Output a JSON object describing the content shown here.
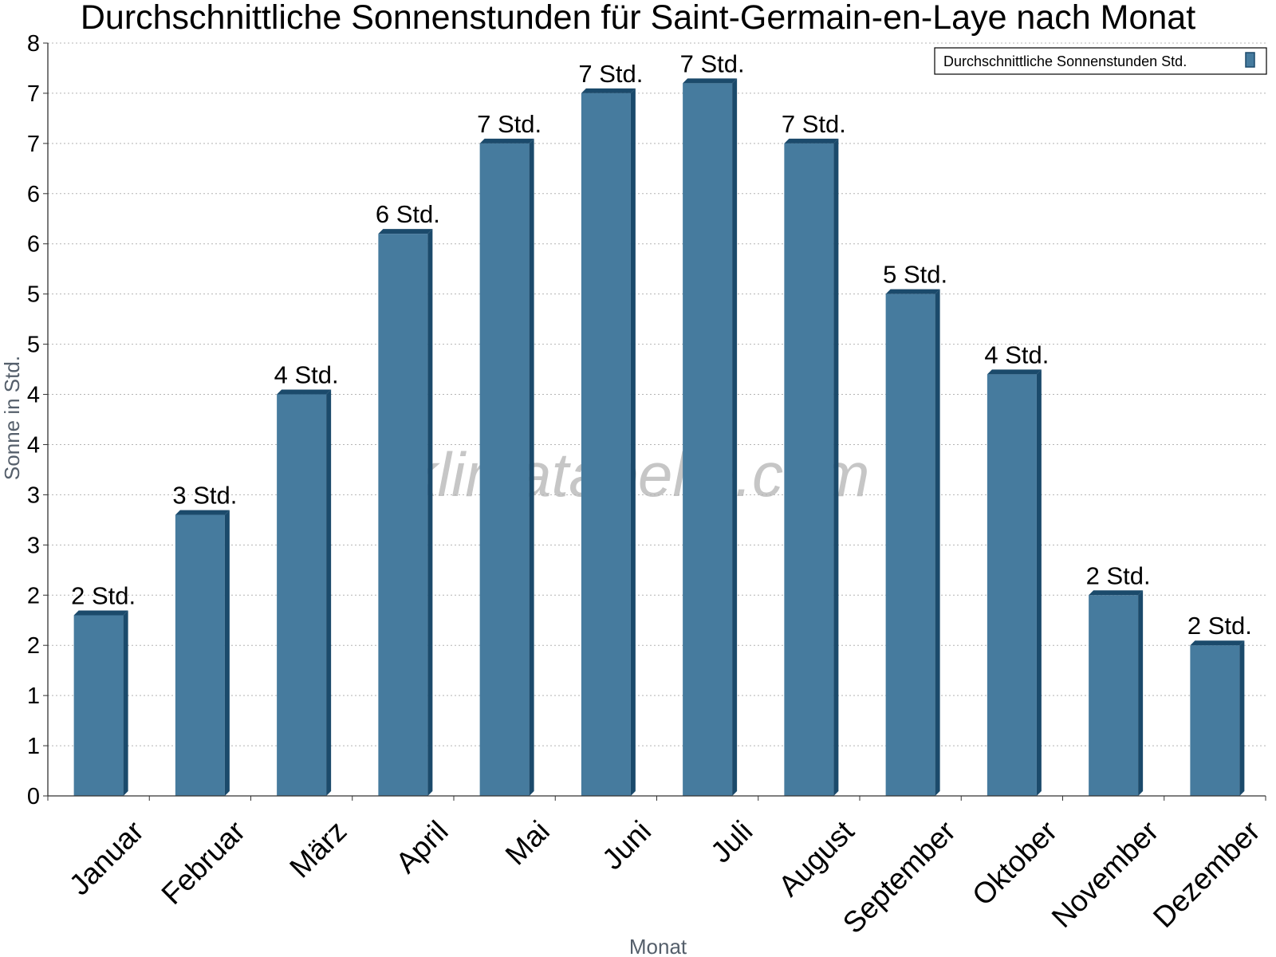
{
  "chart_data": {
    "type": "bar",
    "title": "Durchschnittliche Sonnenstunden für Saint-Germain-en-Laye nach Monat",
    "xlabel": "Monat",
    "ylabel": "Sonne in Std.",
    "categories": [
      "Januar",
      "Februar",
      "März",
      "April",
      "Mai",
      "Juni",
      "Juli",
      "August",
      "September",
      "Oktober",
      "November",
      "Dezember"
    ],
    "series": [
      {
        "name": "Durchschnittliche Sonnenstunden Std.",
        "values": [
          1.8,
          2.8,
          4.0,
          5.6,
          6.5,
          7.0,
          7.1,
          6.5,
          5.0,
          4.2,
          2.0,
          1.5
        ],
        "data_labels": [
          "2 Std.",
          "3 Std.",
          "4 Std.",
          "6 Std.",
          "7 Std.",
          "7 Std.",
          "7 Std.",
          "7 Std.",
          "5 Std.",
          "4 Std.",
          "2 Std.",
          "2 Std."
        ]
      }
    ],
    "ylim": [
      0,
      7.5
    ],
    "yticks": [
      0,
      0.5,
      1,
      1.5,
      2,
      2.5,
      3,
      3.5,
      4,
      4.5,
      5,
      5.5,
      6,
      6.5,
      7,
      7.5
    ],
    "ytick_labels": [
      "0",
      "1",
      "1",
      "2",
      "2",
      "3",
      "3",
      "4",
      "4",
      "5",
      "5",
      "6",
      "6",
      "7",
      "7",
      "8"
    ],
    "grid": true,
    "legend_position": "top-right",
    "bar_color": "#467b9e",
    "bar_edge_color": "#1b4a6b",
    "watermark": "klimatabelle.com"
  }
}
